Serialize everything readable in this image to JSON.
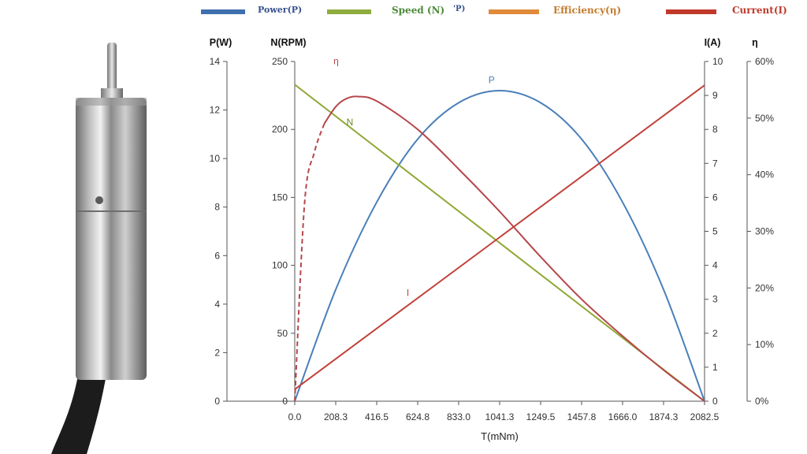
{
  "colors": {
    "power": "#4a7fb9",
    "speed": "#8fa935",
    "efficiency": "#b5474b",
    "current": "#c1413b",
    "efficiency_legend": "#e08a3a",
    "speed_label": "#6a8a26"
  },
  "legend": [
    {
      "label": "Power(P)",
      "color": "#3f6fae",
      "text_color": "#34508a"
    },
    {
      "label": "Speed (N)",
      "color": "#8fac3e",
      "text_color": "#4d8a3a"
    },
    {
      "label": "Efficiency(η)",
      "color": "#e08a3a",
      "text_color": "#c27b2c"
    },
    {
      "label": "Current(I)",
      "color": "#c0392b",
      "text_color": "#c0392b"
    }
  ],
  "legend_stray": "'P)",
  "chart_data": {
    "type": "line",
    "xlabel": "T(mNm)",
    "x_ticks": [
      "0.0",
      "208.3",
      "416.5",
      "624.8",
      "833.0",
      "1041.3",
      "1249.5",
      "1457.8",
      "1666.0",
      "1874.3",
      "2082.5"
    ],
    "xlim": [
      0,
      2082.5
    ],
    "axes": {
      "power": {
        "title": "P(W)",
        "ticks": [
          "0",
          "2",
          "4",
          "6",
          "8",
          "10",
          "12",
          "14"
        ],
        "lim": [
          0,
          14
        ]
      },
      "speed": {
        "title": "N(RPM)",
        "ticks": [
          "0",
          "50",
          "100",
          "150",
          "200",
          "250"
        ],
        "lim": [
          0,
          250
        ]
      },
      "current": {
        "title": "I(A)",
        "ticks": [
          "0",
          "1",
          "2",
          "3",
          "4",
          "5",
          "6",
          "7",
          "8",
          "9",
          "10"
        ],
        "lim": [
          0,
          10
        ]
      },
      "efficiency": {
        "title": "η",
        "ticks": [
          "0%",
          "10%",
          "20%",
          "30%",
          "40%",
          "50%",
          "60%"
        ],
        "lim": [
          0,
          60
        ]
      }
    },
    "series": [
      {
        "name": "P",
        "axis": "power",
        "type": "curve",
        "x": [
          0,
          208.3,
          416.5,
          624.8,
          833.0,
          1041.3,
          1249.5,
          1457.8,
          1666.0,
          1874.3,
          2082.5
        ],
        "y": [
          0,
          4.6,
          8.2,
          10.8,
          12.3,
          12.8,
          12.3,
          10.8,
          8.2,
          4.6,
          0
        ]
      },
      {
        "name": "N",
        "axis": "speed",
        "type": "line",
        "x": [
          0,
          2082.5
        ],
        "y": [
          233,
          0
        ]
      },
      {
        "name": "η",
        "axis": "efficiency",
        "type": "curve",
        "x": [
          0,
          50,
          100,
          150,
          208.3,
          260,
          320,
          416.5,
          624.8,
          833.0,
          1041.3,
          1249.5,
          1457.8,
          1666.0,
          1874.3,
          2082.5
        ],
        "y": [
          0,
          35,
          44,
          49,
          52,
          53.4,
          53.8,
          53.0,
          48.0,
          41.0,
          33.5,
          25.5,
          18.0,
          11.5,
          5.5,
          0
        ],
        "dashed_until": 150
      },
      {
        "name": "I",
        "axis": "current",
        "type": "line",
        "x": [
          0,
          2082.5
        ],
        "y": [
          0.35,
          9.3
        ]
      }
    ],
    "curve_labels": [
      {
        "text": "P",
        "series": "P",
        "x": 1000,
        "axis": "power",
        "y": 13.1
      },
      {
        "text": "N",
        "series": "N",
        "x": 280,
        "axis": "speed",
        "y": 203
      },
      {
        "text": "η",
        "series": "η",
        "x": 210,
        "axis": "efficiency",
        "y": 59.5
      },
      {
        "text": "I",
        "series": "I",
        "x": 575,
        "axis": "current",
        "y": 3.1
      }
    ]
  }
}
